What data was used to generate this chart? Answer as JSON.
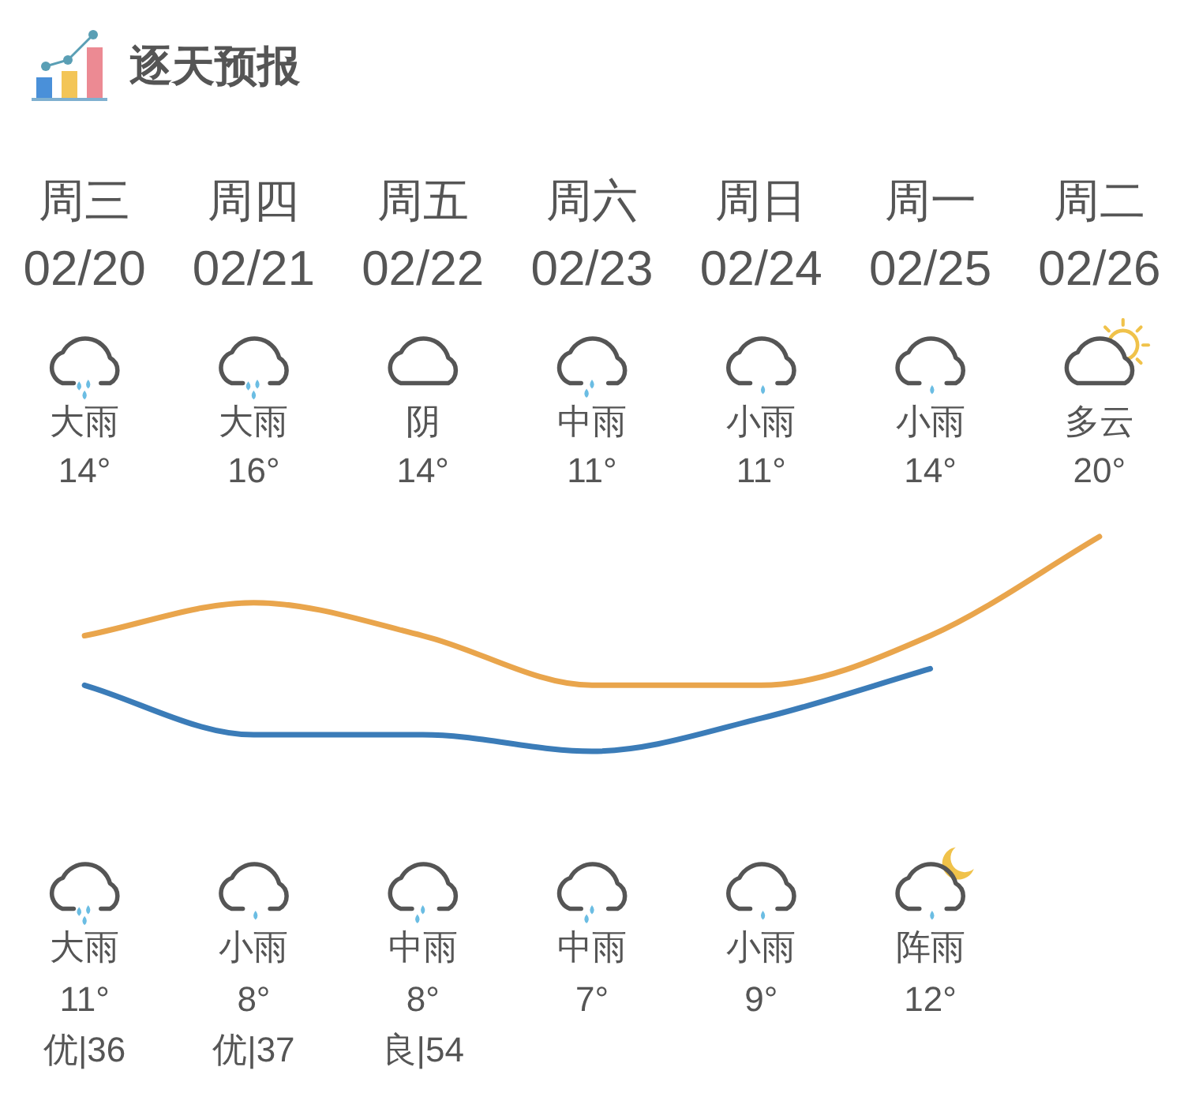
{
  "chart_data": {
    "type": "line",
    "title": "逐天预报",
    "categories": [
      "周三 02/20",
      "周四 02/21",
      "周五 02/22",
      "周六 02/23",
      "周日 02/24",
      "周一 02/25",
      "周二 02/26"
    ],
    "series": [
      {
        "color": "#e9a54c",
        "values": [
          14,
          16,
          14,
          11,
          11,
          14,
          20
        ],
        "value_labels": [
          "14°",
          "16°",
          "14°",
          "11°",
          "11°",
          "14°",
          "20°"
        ]
      },
      {
        "color": "#3b7cb8",
        "values": [
          11,
          8,
          8,
          7,
          9,
          12,
          null
        ],
        "value_labels": [
          "11°",
          "8°",
          "8°",
          "7°",
          "9°",
          "12°",
          null
        ]
      }
    ],
    "annotations": [
      "大雨",
      "大雨",
      "阴",
      "中雨",
      "小雨",
      "小雨",
      "多云",
      "大雨",
      "小雨",
      "中雨",
      "中雨",
      "小雨",
      "阵雨",
      "优|36",
      "优|37",
      "良|54"
    ]
  }
}
